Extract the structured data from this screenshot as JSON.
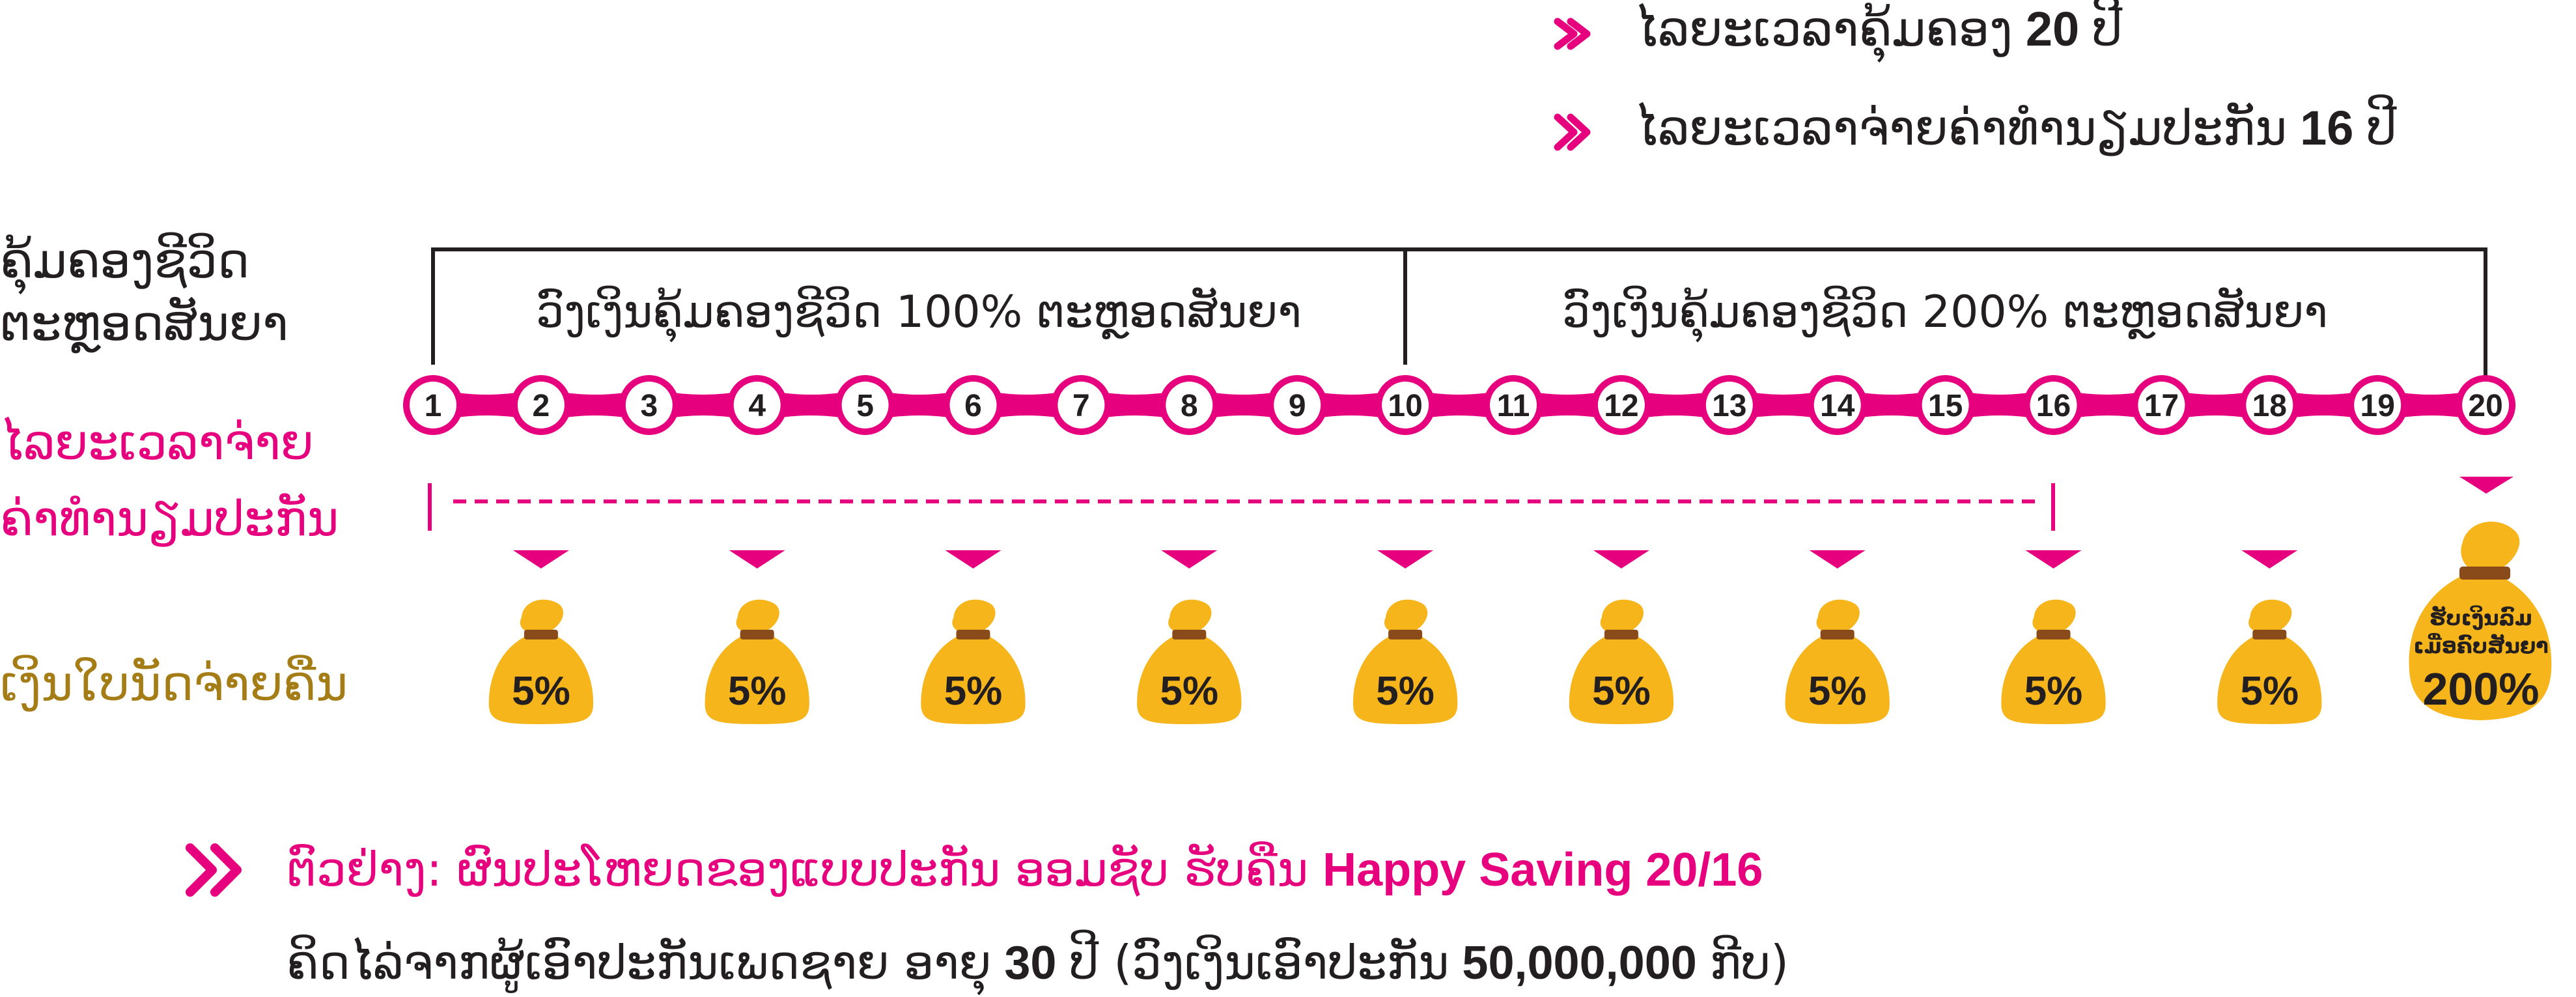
{
  "header": {
    "coverage_prefix": "ໄລຍະເວລາຄຸ້ມຄອງ",
    "coverage_years": "20",
    "payment_prefix": "ໄລຍະເວລາຈ່າຍຄ່າທຳນຽມປະກັນ",
    "payment_years": "16",
    "year_unit": "ປີ"
  },
  "labels": {
    "life_coverage_line1": "ຄຸ້ມຄອງຊີວິດ",
    "life_coverage_line2": "ຕະຫຼອດສັນຍາ",
    "premium_period_line1": "ໄລຍະເວລາຈ່າຍ",
    "premium_period_line2": "ຄ່າທຳນຽມປະກັນ",
    "cash_return": "ເງິນໃບນັດຈ່າຍຄືນ"
  },
  "coverage_boxes": [
    "ວົງເງິນຄຸ້ມຄອງຊີວິດ 100% ຕະຫຼອດສັນຍາ",
    "ວົງເງິນຄຸ້ມຄອງຊີວິດ 200% ຕະຫຼອດສັນຍາ"
  ],
  "years": [
    "1",
    "2",
    "3",
    "4",
    "5",
    "6",
    "7",
    "8",
    "9",
    "10",
    "11",
    "12",
    "13",
    "14",
    "15",
    "16",
    "17",
    "18",
    "19",
    "20"
  ],
  "payouts": [
    {
      "year": 2,
      "label": "5%"
    },
    {
      "year": 4,
      "label": "5%"
    },
    {
      "year": 6,
      "label": "5%"
    },
    {
      "year": 8,
      "label": "5%"
    },
    {
      "year": 10,
      "label": "5%"
    },
    {
      "year": 12,
      "label": "5%"
    },
    {
      "year": 14,
      "label": "5%"
    },
    {
      "year": 16,
      "label": "5%"
    },
    {
      "year": 18,
      "label": "5%"
    }
  ],
  "final_payout": {
    "line1": "ຮັບເງິນລົມ",
    "line2": "ເມື່ອຄົບສັນຍາ",
    "percent": "200%"
  },
  "example": {
    "prefix": "ຕົວຢ່າງ: ຜົນປະໂຫຍດຂອງແບບປະກັນ ອອມຊັບ ຮັບຄືນ",
    "product": "Happy Saving 20/16",
    "detail_a": "ຄິດໄລ່ຈາກຜູ້ເອົາປະກັນເພດຊາຍ ອາຍຸ",
    "age": "30",
    "detail_b": "ປີ (ວົງເງິນເອົາປະກັນ",
    "sum": "50,000,000",
    "detail_c": "ກີບ)"
  },
  "colors": {
    "magenta": "#e6007e",
    "gold": "#f5b51b",
    "label_gold": "#a57d16",
    "ribbon": "#8a4b1b",
    "text": "#231f20"
  }
}
